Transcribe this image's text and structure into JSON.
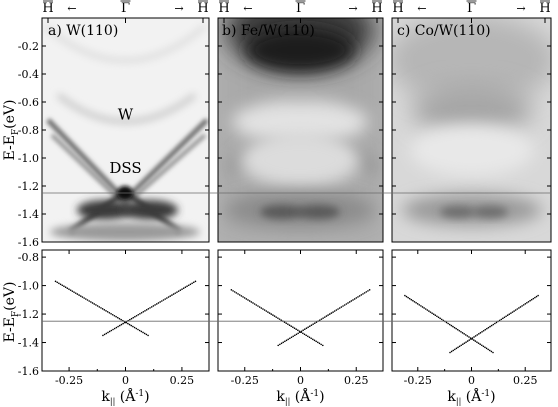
{
  "figure": {
    "ylabel": "E-E_F(eV)",
    "hline_energy": -1.25,
    "colors": {
      "frame": "#000000",
      "line": "#6a6a6a",
      "dots": "#000000"
    }
  },
  "chart_data": [
    {
      "type": "heatmap",
      "title": "a) W(110)",
      "top_ticks": [
        "H",
        "←",
        "Γ",
        "→",
        "H"
      ],
      "ylabel": "E-E_F(eV)",
      "ylim": [
        -1.6,
        0.0
      ],
      "yticks": [
        "-0.2",
        "-0.4",
        "-0.6",
        "-0.8",
        "-1.0",
        "-1.2",
        "-1.4",
        "-1.6"
      ],
      "annotations": [
        {
          "text": "W",
          "k": 0.0,
          "energy": -0.69
        },
        {
          "text": "DSS",
          "k": 0.0,
          "energy": -1.07
        }
      ]
    },
    {
      "type": "heatmap",
      "title": "b) Fe/W(110)",
      "top_ticks": [
        "H",
        "←",
        "Γ",
        "→",
        "H"
      ],
      "ylim": [
        -1.6,
        0.0
      ],
      "annotations": []
    },
    {
      "type": "heatmap",
      "title": "c) Co/W(110)",
      "top_ticks": [
        "H",
        "←",
        "Γ",
        "→",
        "H"
      ],
      "ylim": [
        -1.6,
        0.0
      ],
      "annotations": []
    },
    {
      "type": "scatter",
      "xlabel": "k|| (Å-1)",
      "ylabel": "E-E_F(eV)",
      "xlim": [
        -0.37,
        0.37
      ],
      "ylim": [
        -1.6,
        -0.75
      ],
      "xticks": [
        "-0.25",
        "0",
        "0.25"
      ],
      "yticks": [
        "-0.8",
        "-1.0",
        "-1.2",
        "-1.4",
        "-1.6"
      ],
      "series": [
        {
          "values": [
            [
              -0.31,
              -0.97
            ],
            [
              0.1,
              -1.35
            ]
          ]
        },
        {
          "values": [
            [
              -0.1,
              -1.35
            ],
            [
              0.31,
              -0.97
            ]
          ]
        }
      ]
    },
    {
      "type": "scatter",
      "xlabel": "k|| (Å-1)",
      "xlim": [
        -0.37,
        0.37
      ],
      "ylim": [
        -1.6,
        -0.75
      ],
      "xticks": [
        "-0.25",
        "0",
        "0.25"
      ],
      "series": [
        {
          "values": [
            [
              -0.31,
              -1.03
            ],
            [
              0.1,
              -1.42
            ]
          ]
        },
        {
          "values": [
            [
              -0.1,
              -1.42
            ],
            [
              0.31,
              -1.03
            ]
          ]
        }
      ]
    },
    {
      "type": "scatter",
      "xlabel": "k|| (Å-1)",
      "xlim": [
        -0.37,
        0.37
      ],
      "ylim": [
        -1.6,
        -0.75
      ],
      "xticks": [
        "-0.25",
        "0",
        "0.25"
      ],
      "series": [
        {
          "values": [
            [
              -0.31,
              -1.07
            ],
            [
              0.1,
              -1.47
            ]
          ]
        },
        {
          "values": [
            [
              -0.1,
              -1.47
            ],
            [
              0.31,
              -1.07
            ]
          ]
        }
      ]
    }
  ]
}
